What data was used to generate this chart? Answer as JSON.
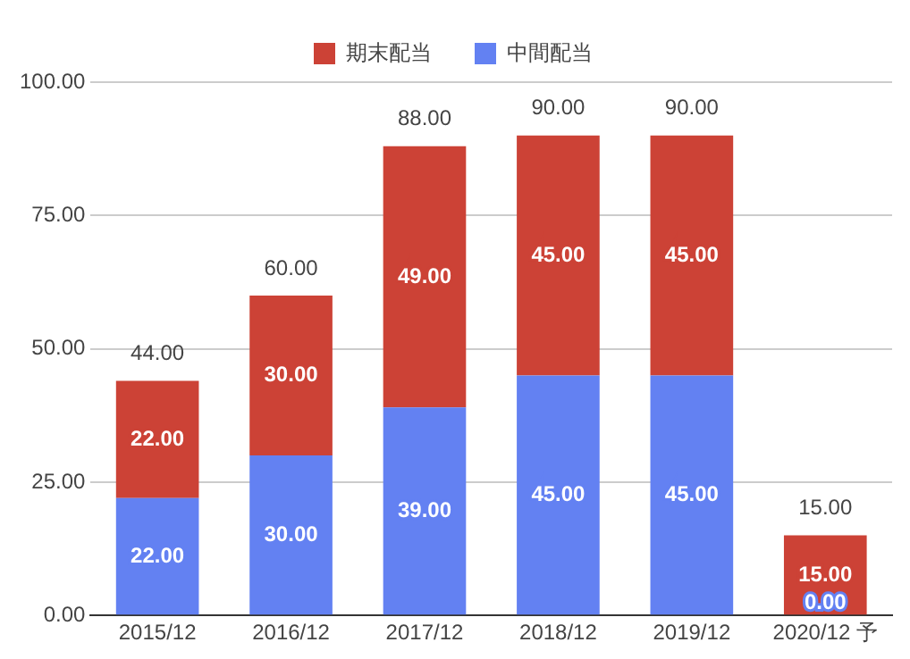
{
  "chart_data": {
    "type": "bar",
    "stacked": true,
    "categories": [
      "2015/12",
      "2016/12",
      "2017/12",
      "2018/12",
      "2019/12",
      "2020/12 予"
    ],
    "series": [
      {
        "name": "中間配当",
        "color": "#6381f2",
        "values": [
          22,
          30,
          39,
          45,
          45,
          0
        ],
        "value_labels": [
          "22.00",
          "30.00",
          "39.00",
          "45.00",
          "45.00",
          "0.00"
        ]
      },
      {
        "name": "期末配当",
        "color": "#cc4236",
        "values": [
          22,
          30,
          49,
          45,
          45,
          15
        ],
        "value_labels": [
          "22.00",
          "30.00",
          "49.00",
          "45.00",
          "45.00",
          "15.00"
        ]
      }
    ],
    "totals": [
      "44.00",
      "60.00",
      "88.00",
      "90.00",
      "90.00",
      "15.00"
    ],
    "ylim": [
      0,
      100
    ],
    "yticks": [
      {
        "value": 0,
        "label": "0.00"
      },
      {
        "value": 25,
        "label": "25.00"
      },
      {
        "value": 50,
        "label": "50.00"
      },
      {
        "value": 75,
        "label": "75.00"
      },
      {
        "value": 100,
        "label": "100.00"
      }
    ],
    "grid": "y",
    "legend": "top"
  }
}
